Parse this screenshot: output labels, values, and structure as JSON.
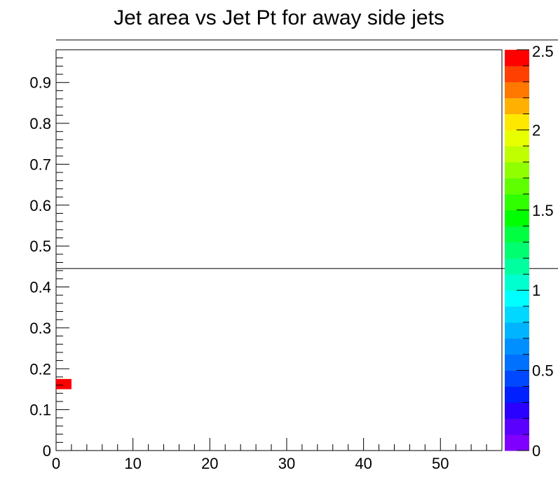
{
  "chart_data": {
    "type": "heatmap",
    "title": "Jet area vs Jet Pt for away side jets",
    "xlabel": "",
    "ylabel": "",
    "xlim": [
      0,
      58
    ],
    "ylim": [
      0,
      0.98
    ],
    "x_ticks": [
      0,
      10,
      20,
      30,
      40,
      50
    ],
    "x_tick_labels": [
      "0",
      "10",
      "20",
      "30",
      "40",
      "50"
    ],
    "y_ticks": [
      0,
      0.1,
      0.2,
      0.3,
      0.4,
      0.5,
      0.6,
      0.7,
      0.8,
      0.9
    ],
    "y_tick_labels": [
      "0",
      "0.1",
      "0.2",
      "0.3",
      "0.4",
      "0.5",
      "0.6",
      "0.7",
      "0.8",
      "0.9"
    ],
    "cells": [
      {
        "x0": 0,
        "x1": 2,
        "y0": 0.15,
        "y1": 0.175,
        "z": 2.5
      }
    ],
    "zlim": [
      0,
      2.5
    ],
    "z_ticks": [
      0,
      0.5,
      1,
      1.5,
      2,
      2.5
    ],
    "z_tick_labels": [
      "0",
      "0.5",
      "1",
      "1.5",
      "2",
      "2.5"
    ],
    "reference_lines": [
      {
        "orientation": "horizontal",
        "y": 0.445
      }
    ],
    "palette": [
      "#7f00ff",
      "#5a00ff",
      "#2a00ff",
      "#0020ff",
      "#0048ff",
      "#0070ff",
      "#008fff",
      "#00b4ff",
      "#00d8ff",
      "#00ffff",
      "#00ffcf",
      "#00ff9f",
      "#00ff70",
      "#00ff40",
      "#00ff00",
      "#30ff00",
      "#60ff00",
      "#90ff00",
      "#c0ff00",
      "#e8ff00",
      "#ffe800",
      "#ffb000",
      "#ff7800",
      "#ff4000",
      "#ff0000"
    ],
    "grid": false,
    "legend": "colorbar-right"
  }
}
